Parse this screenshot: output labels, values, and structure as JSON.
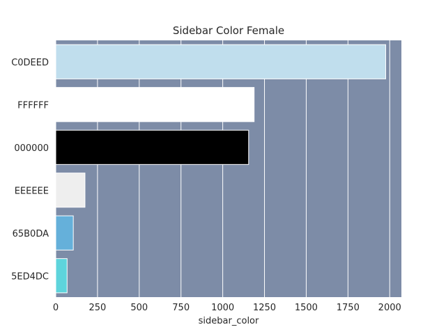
{
  "chart_data": {
    "type": "bar",
    "orientation": "horizontal",
    "title": "Sidebar Color Female",
    "xlabel": "sidebar_color",
    "ylabel": "",
    "categories": [
      "C0DEED",
      "FFFFFF",
      "000000",
      "EEEEEE",
      "65B0DA",
      "5ED4DC"
    ],
    "values": [
      1976,
      1188,
      1155,
      175,
      105,
      68
    ],
    "bar_colors": [
      "#C0DEED",
      "#FFFFFF",
      "#000000",
      "#EEEEEE",
      "#65B0DA",
      "#5ED4DC"
    ],
    "xlim": [
      0,
      2070
    ],
    "xticks": [
      0,
      250,
      500,
      750,
      1000,
      1250,
      1500,
      1750,
      2000
    ],
    "grid": true,
    "plot_background": "#7D8CA7"
  }
}
